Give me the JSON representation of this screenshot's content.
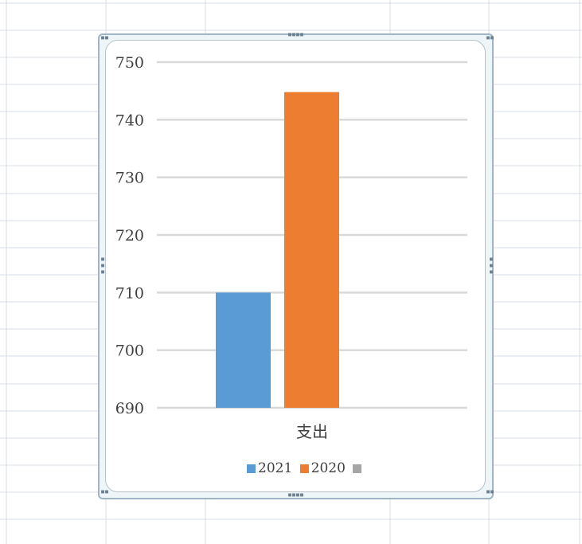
{
  "colors": {
    "grid_lines": "#d7dde5",
    "chart_gridline": "#d9d9d9",
    "axis_text": "#404040"
  },
  "chart_data": {
    "type": "bar",
    "categories": [
      "支出"
    ],
    "series": [
      {
        "name": "2021",
        "values": [
          710
        ],
        "color": "#5b9bd5"
      },
      {
        "name": "2020",
        "values": [
          744.8
        ],
        "color": "#ed7d31"
      },
      {
        "name": "",
        "values": [
          null
        ],
        "color": "#a5a5a5"
      }
    ],
    "ylim": [
      690,
      750
    ],
    "yticks": [
      690,
      700,
      710,
      720,
      730,
      740,
      750
    ],
    "grid": true,
    "legend_position": "bottom",
    "title": "",
    "xlabel": "",
    "ylabel": ""
  }
}
